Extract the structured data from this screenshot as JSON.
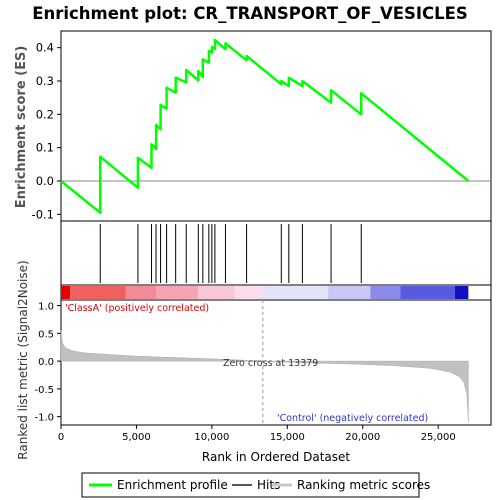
{
  "chart_data": {
    "type": "line",
    "title": "Enrichment plot: CR_TRANSPORT_OF_VESICLES",
    "top_panel": {
      "ylabel": "Enrichment score (ES)",
      "yticks": [
        -0.1,
        0.0,
        0.1,
        0.2,
        0.3,
        0.4
      ],
      "ylim": [
        -0.12,
        0.45
      ],
      "zero_line": true,
      "series": [
        {
          "name": "Enrichment profile",
          "color": "#00ff00",
          "x": [
            0,
            2600,
            2600,
            5100,
            5100,
            6000,
            6000,
            6300,
            6300,
            6600,
            6600,
            7000,
            7000,
            7600,
            7600,
            8300,
            8300,
            9100,
            9100,
            9400,
            9400,
            9800,
            9800,
            10000,
            10000,
            10200,
            10200,
            10900,
            10900,
            12300,
            12300,
            14600,
            14600,
            15100,
            15100,
            16000,
            16000,
            17900,
            17900,
            19900,
            19900,
            27000
          ],
          "y": [
            0.0,
            -0.095,
            0.073,
            -0.02,
            0.07,
            0.04,
            0.11,
            0.097,
            0.168,
            0.155,
            0.228,
            0.217,
            0.28,
            0.265,
            0.31,
            0.296,
            0.333,
            0.302,
            0.33,
            0.312,
            0.365,
            0.355,
            0.39,
            0.385,
            0.402,
            0.396,
            0.423,
            0.395,
            0.413,
            0.362,
            0.375,
            0.29,
            0.3,
            0.285,
            0.31,
            0.285,
            0.3,
            0.235,
            0.272,
            0.2,
            0.263,
            0.0
          ]
        }
      ]
    },
    "hits": {
      "name": "Hits",
      "x": [
        2600,
        5100,
        6000,
        6300,
        6600,
        7000,
        7600,
        8300,
        9100,
        9400,
        9800,
        10000,
        10200,
        10900,
        12300,
        14600,
        15100,
        16000,
        17900,
        19900
      ]
    },
    "bottom_panel": {
      "ylabel": "Ranked list metric (Signal2Noise)",
      "xlabel": "Rank in Ordered Dataset",
      "yticks": [
        -1.0,
        -0.5,
        0.0,
        0.5,
        1.0
      ],
      "ylim": [
        -1.15,
        1.1
      ],
      "xticks": [
        0,
        5000,
        10000,
        15000,
        20000,
        25000
      ],
      "xlim": [
        0,
        28500
      ],
      "zero_cross": 13379,
      "zero_cross_label": "Zero cross at 13379",
      "positive_label": "'ClassA' (positively correlated)",
      "negative_label": "'Control' (negatively correlated)",
      "positive_color": "#dd0000",
      "negative_color": "#0000cc",
      "metric": {
        "name": "Ranking metric scores",
        "x": [
          0,
          100,
          300,
          700,
          1500,
          3000,
          5000,
          8000,
          11000,
          13379,
          16000,
          19000,
          22000,
          24500,
          25800,
          26400,
          26700,
          26900,
          27000
        ],
        "y": [
          0.55,
          0.32,
          0.24,
          0.19,
          0.15,
          0.12,
          0.09,
          0.06,
          0.03,
          0.0,
          -0.03,
          -0.05,
          -0.08,
          -0.13,
          -0.2,
          -0.28,
          -0.38,
          -0.6,
          -1.1
        ]
      }
    },
    "legend": {
      "placement": "bottom",
      "items": [
        {
          "label": "Enrichment profile",
          "color": "#00ff00"
        },
        {
          "label": "Hits",
          "color": "#555555"
        },
        {
          "label": "Ranking metric scores",
          "color": "#c8c8c8"
        }
      ]
    }
  }
}
